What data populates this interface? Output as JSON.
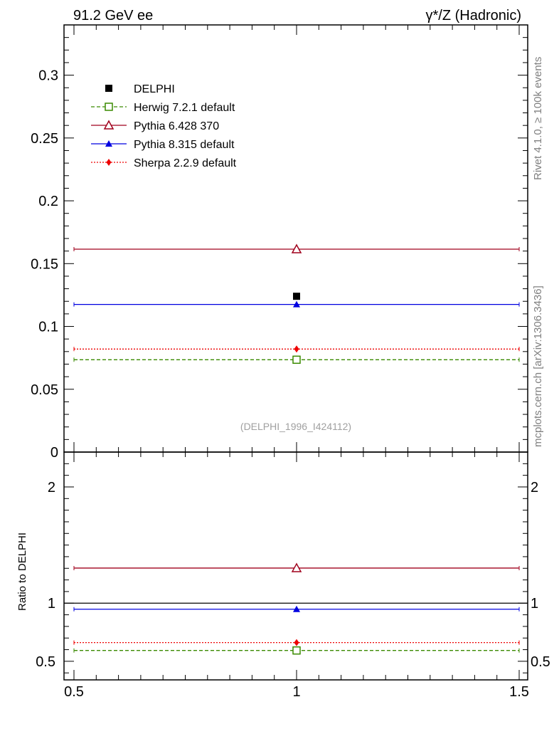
{
  "header": {
    "left": "91.2 GeV ee",
    "right": "γ*/Z (Hadronic)"
  },
  "side_labels": {
    "rivet": "Rivet 4.1.0, ≥ 100k events",
    "mcplots": "mcplots.cern.ch [arXiv:1306.3436]"
  },
  "reference": "(DELPHI_1996_I424112)",
  "chart_data": [
    {
      "type": "scatter",
      "panel": "main",
      "xlim": [
        0.5,
        1.5
      ],
      "ylim": [
        0,
        0.34
      ],
      "ylabel": "",
      "y_tick_labels": [
        "0",
        "0.05",
        "0.1",
        "0.15",
        "0.2",
        "0.25",
        "0.3"
      ],
      "y_tick_values": [
        0,
        0.05,
        0.1,
        0.15,
        0.2,
        0.25,
        0.3
      ],
      "legend_position": "top-left",
      "series": [
        {
          "name": "DELPHI",
          "x": 1,
          "y": 0.124,
          "marker": "square-filled",
          "line": "none",
          "color": "#000000"
        },
        {
          "name": "Herwig 7.2.1 default",
          "x": 1,
          "y": 0.0735,
          "marker": "square-open",
          "line": "dashed",
          "color": "#3a8a00"
        },
        {
          "name": "Pythia 6.428 370",
          "x": 1,
          "y": 0.1615,
          "marker": "triangle-open",
          "line": "solid",
          "color": "#a0001c"
        },
        {
          "name": "Pythia 8.315 default",
          "x": 1,
          "y": 0.1175,
          "marker": "triangle-filled",
          "line": "solid",
          "color": "#0000e0"
        },
        {
          "name": "Sherpa 2.2.9 default",
          "x": 1,
          "y": 0.082,
          "marker": "diamond-filled",
          "line": "dotted",
          "color": "#ee0000"
        }
      ]
    },
    {
      "type": "scatter",
      "panel": "ratio",
      "xlim": [
        0.5,
        1.5
      ],
      "ylim": [
        0.34,
        2.3
      ],
      "ylabel": "Ratio to DELPHI",
      "y_tick_labels": [
        "0.5",
        "1",
        "2"
      ],
      "y_tick_values": [
        0.5,
        1,
        2
      ],
      "x_tick_labels": [
        "0.5",
        "1",
        "1.5"
      ],
      "x_tick_values": [
        0.5,
        1,
        1.5
      ],
      "series": [
        {
          "name": "Herwig 7.2.1 default",
          "x": 1,
          "y": 0.593
        },
        {
          "name": "Pythia 6.428 370",
          "x": 1,
          "y": 1.302
        },
        {
          "name": "Pythia 8.315 default",
          "x": 1,
          "y": 0.948
        },
        {
          "name": "Sherpa 2.2.9 default",
          "x": 1,
          "y": 0.661
        }
      ]
    }
  ]
}
